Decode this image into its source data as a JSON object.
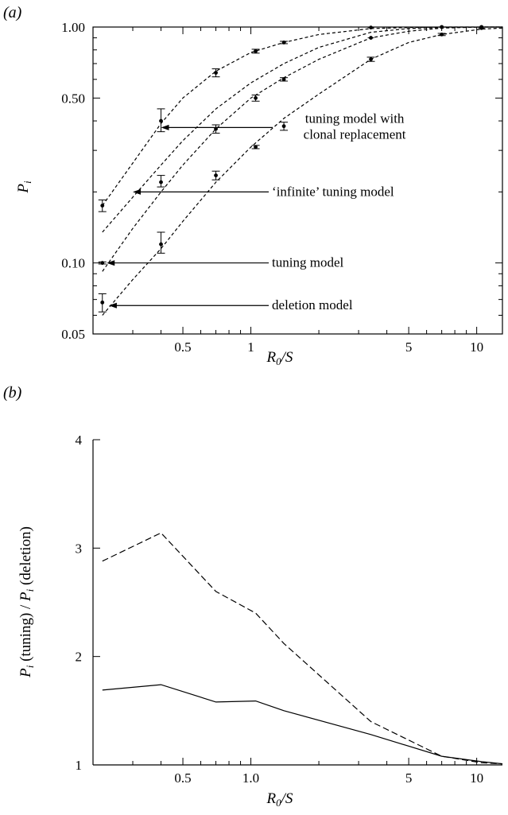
{
  "chart_data": [
    {
      "type": "line",
      "panel_label": "(a)",
      "xscale": "log",
      "yscale": "log",
      "xlim": [
        0.2,
        13
      ],
      "ylim": [
        0.05,
        1.0
      ],
      "xlabel_main": "R",
      "xlabel_sub": "0",
      "xlabel_tail": "/S",
      "ylabel_main": "P",
      "ylabel_sub": "i",
      "xticks_major": [
        {
          "v": 0.5,
          "label": "0.5"
        },
        {
          "v": 1,
          "label": "1"
        },
        {
          "v": 5,
          "label": "5"
        },
        {
          "v": 10,
          "label": "10"
        }
      ],
      "xticks_minor": [
        0.2,
        0.3,
        0.4,
        0.6,
        0.7,
        0.8,
        0.9,
        2,
        3,
        4,
        6,
        7,
        8,
        9
      ],
      "yticks_major": [
        {
          "v": 0.05,
          "label": "0.05"
        },
        {
          "v": 0.1,
          "label": "0.10"
        },
        {
          "v": 0.5,
          "label": "0.50"
        },
        {
          "v": 1.0,
          "label": "1.00"
        }
      ],
      "yticks_minor": [
        0.06,
        0.07,
        0.08,
        0.09,
        0.2,
        0.3,
        0.4,
        0.6,
        0.7,
        0.8,
        0.9
      ],
      "series": [
        {
          "name": "tuning model with clonal replacement",
          "curve_x": [
            0.22,
            0.3,
            0.4,
            0.5,
            0.7,
            1.0,
            1.4,
            2.0,
            3.4,
            5.0,
            7.0,
            10.5,
            13
          ],
          "curve_y": [
            0.175,
            0.265,
            0.39,
            0.5,
            0.65,
            0.78,
            0.86,
            0.93,
            0.985,
            0.995,
            1.0,
            1.0,
            1.0
          ],
          "points": [
            {
              "x": 0.22,
              "y": 0.175,
              "lo": 0.165,
              "hi": 0.185
            },
            {
              "x": 0.4,
              "y": 0.4,
              "lo": 0.36,
              "hi": 0.45
            },
            {
              "x": 0.7,
              "y": 0.64,
              "lo": 0.615,
              "hi": 0.665
            },
            {
              "x": 1.05,
              "y": 0.79,
              "lo": 0.775,
              "hi": 0.805
            },
            {
              "x": 1.4,
              "y": 0.86,
              "lo": 0.85,
              "hi": 0.87
            },
            {
              "x": 3.4,
              "y": 0.995,
              "lo": 0.99,
              "hi": 1.0
            },
            {
              "x": 7.0,
              "y": 1.0,
              "lo": 1.0,
              "hi": 1.0
            },
            {
              "x": 10.5,
              "y": 1.0,
              "lo": 1.0,
              "hi": 1.0
            }
          ]
        },
        {
          "name": "'infinite' tuning model",
          "curve_x": [
            0.22,
            0.3,
            0.4,
            0.5,
            0.7,
            1.0,
            1.4,
            2.0,
            3.4,
            5.0,
            7.0,
            10.5,
            13
          ],
          "curve_y": [
            0.135,
            0.19,
            0.26,
            0.33,
            0.45,
            0.58,
            0.7,
            0.82,
            0.95,
            0.985,
            0.995,
            1.0,
            1.0
          ],
          "points": []
        },
        {
          "name": "tuning model",
          "curve_x": [
            0.22,
            0.3,
            0.4,
            0.5,
            0.7,
            1.0,
            1.4,
            2.0,
            3.4,
            5.0,
            7.0,
            10.5,
            13
          ],
          "curve_y": [
            0.092,
            0.14,
            0.2,
            0.26,
            0.37,
            0.5,
            0.61,
            0.73,
            0.9,
            0.96,
            0.99,
            1.0,
            1.0
          ],
          "points": [
            {
              "x": 0.22,
              "y": 0.1,
              "lo": 0.099,
              "hi": 0.101
            },
            {
              "x": 0.4,
              "y": 0.22,
              "lo": 0.21,
              "hi": 0.235
            },
            {
              "x": 0.7,
              "y": 0.37,
              "lo": 0.355,
              "hi": 0.385
            },
            {
              "x": 1.05,
              "y": 0.5,
              "lo": 0.485,
              "hi": 0.515
            },
            {
              "x": 1.4,
              "y": 0.6,
              "lo": 0.59,
              "hi": 0.61
            },
            {
              "x": 3.4,
              "y": 0.9,
              "lo": 0.895,
              "hi": 0.905
            },
            {
              "x": 7.0,
              "y": 1.0,
              "lo": 1.0,
              "hi": 1.0
            },
            {
              "x": 10.5,
              "y": 1.0,
              "lo": 1.0,
              "hi": 1.0
            }
          ]
        },
        {
          "name": "deletion model",
          "curve_x": [
            0.22,
            0.3,
            0.4,
            0.5,
            0.7,
            1.0,
            1.4,
            2.0,
            3.4,
            5.0,
            7.0,
            10.5,
            13
          ],
          "curve_y": [
            0.06,
            0.085,
            0.115,
            0.15,
            0.22,
            0.31,
            0.41,
            0.52,
            0.73,
            0.86,
            0.93,
            0.98,
            0.99
          ],
          "points": [
            {
              "x": 0.22,
              "y": 0.068,
              "lo": 0.062,
              "hi": 0.074
            },
            {
              "x": 0.4,
              "y": 0.12,
              "lo": 0.11,
              "hi": 0.135
            },
            {
              "x": 0.7,
              "y": 0.235,
              "lo": 0.225,
              "hi": 0.245
            },
            {
              "x": 1.05,
              "y": 0.31,
              "lo": 0.305,
              "hi": 0.315
            },
            {
              "x": 1.4,
              "y": 0.38,
              "lo": 0.365,
              "hi": 0.395
            },
            {
              "x": 3.4,
              "y": 0.73,
              "lo": 0.715,
              "hi": 0.745
            },
            {
              "x": 7.0,
              "y": 0.93,
              "lo": 0.92,
              "hi": 0.94
            },
            {
              "x": 10.5,
              "y": 0.99,
              "lo": 0.985,
              "hi": 0.995
            }
          ]
        }
      ],
      "annotations": [
        {
          "lines": [
            "tuning model with",
            "clonal replacement"
          ],
          "arrow_from": {
            "x": 1.25,
            "y": 0.375
          },
          "arrow_to": {
            "x": 0.4,
            "y": 0.375
          }
        },
        {
          "lines": [
            "‘infinite’ tuning model"
          ],
          "arrow_from": {
            "x": 1.2,
            "y": 0.2
          },
          "arrow_to": {
            "x": 0.3,
            "y": 0.2
          }
        },
        {
          "lines": [
            "tuning model"
          ],
          "arrow_from": {
            "x": 1.2,
            "y": 0.1
          },
          "arrow_to": {
            "x": 0.23,
            "y": 0.1
          }
        },
        {
          "lines": [
            "deletion model"
          ],
          "arrow_from": {
            "x": 1.2,
            "y": 0.066
          },
          "arrow_to": {
            "x": 0.235,
            "y": 0.066
          }
        }
      ]
    },
    {
      "type": "line",
      "panel_label": "(b)",
      "xscale": "log",
      "yscale": "linear",
      "xlim": [
        0.2,
        13
      ],
      "ylim": [
        1,
        4
      ],
      "xlabel_main": "R",
      "xlabel_sub": "0",
      "xlabel_tail": "/S",
      "ylabel_parts": [
        "P",
        "i",
        " (tuning) / ",
        "P",
        "i",
        " (deletion)"
      ],
      "xticks_major": [
        {
          "v": 0.5,
          "label": "0.5"
        },
        {
          "v": 1,
          "label": "1.0"
        },
        {
          "v": 5,
          "label": "5"
        },
        {
          "v": 10,
          "label": "10"
        }
      ],
      "xticks_minor": [
        0.2,
        0.3,
        0.4,
        0.6,
        0.7,
        0.8,
        0.9,
        2,
        3,
        4,
        6,
        7,
        8,
        9
      ],
      "yticks_major": [
        {
          "v": 1,
          "label": "1"
        },
        {
          "v": 2,
          "label": "2"
        },
        {
          "v": 3,
          "label": "3"
        },
        {
          "v": 4,
          "label": "4"
        }
      ],
      "series": [
        {
          "style": "dashed",
          "x": [
            0.22,
            0.4,
            0.7,
            1.05,
            1.4,
            3.4,
            7.0,
            10.5,
            13
          ],
          "y": [
            2.88,
            3.14,
            2.6,
            2.4,
            2.12,
            1.4,
            1.08,
            1.02,
            1.01
          ]
        },
        {
          "style": "solid",
          "x": [
            0.22,
            0.4,
            0.7,
            1.05,
            1.4,
            3.4,
            7.0,
            10.5,
            13
          ],
          "y": [
            1.69,
            1.74,
            1.58,
            1.59,
            1.5,
            1.28,
            1.08,
            1.03,
            1.01
          ]
        }
      ]
    }
  ]
}
